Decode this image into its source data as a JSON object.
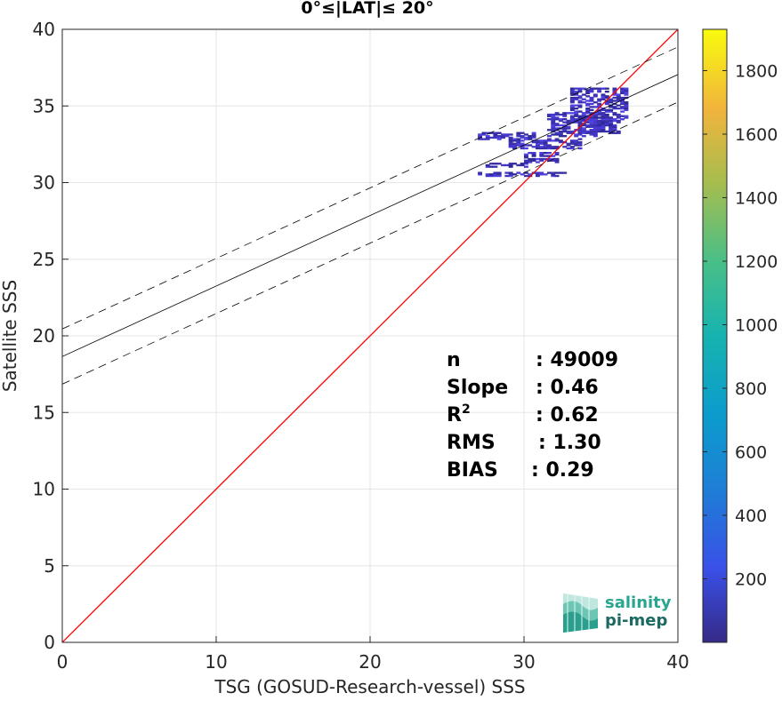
{
  "chart_data": {
    "type": "scatter",
    "title": "0°≤|LAT|≤ 20°",
    "xlabel": "TSG (GOSUD-Research-vessel) SSS",
    "ylabel": "Satellite SSS",
    "xlim": [
      0,
      40
    ],
    "ylim": [
      0,
      40
    ],
    "xticks": [
      "0",
      "10",
      "20",
      "30",
      "40"
    ],
    "yticks": [
      "0",
      "5",
      "10",
      "15",
      "20",
      "25",
      "30",
      "35",
      "40"
    ],
    "grid": true,
    "one_to_one_line": {
      "color": "#ff0000",
      "x": [
        0,
        40
      ],
      "y": [
        0,
        40
      ]
    },
    "fit_line": {
      "color": "#000000",
      "intercept": 18.65,
      "slope": 0.46
    },
    "fit_band_offset": 1.8,
    "density_clusters": [
      {
        "x": [
          27.0,
          30.5
        ],
        "y": [
          32.8,
          33.3
        ]
      },
      {
        "x": [
          29.0,
          33.5
        ],
        "y": [
          32.2,
          32.9
        ]
      },
      {
        "x": [
          31.5,
          35.0
        ],
        "y": [
          33.0,
          34.6
        ]
      },
      {
        "x": [
          33.0,
          36.5
        ],
        "y": [
          34.0,
          36.2
        ]
      },
      {
        "x": [
          33.5,
          36.0
        ],
        "y": [
          33.2,
          34.3
        ]
      },
      {
        "x": [
          27.5,
          30.0
        ],
        "y": [
          31.0,
          31.3
        ]
      },
      {
        "x": [
          27.0,
          32.5
        ],
        "y": [
          30.4,
          30.7
        ]
      },
      {
        "x": [
          30.0,
          32.0
        ],
        "y": [
          31.3,
          32.0
        ]
      }
    ],
    "colorbar": {
      "ticks": [
        "200",
        "400",
        "600",
        "800",
        "1000",
        "1200",
        "1400",
        "1600",
        "1800"
      ],
      "tick_values": [
        200,
        400,
        600,
        800,
        1000,
        1200,
        1400,
        1600,
        1800
      ],
      "range": [
        0,
        1930
      ],
      "colormap": "parula"
    },
    "stats": [
      {
        "label": "n",
        "value": ": 49009"
      },
      {
        "label": "Slope",
        "value": ": 0.46"
      },
      {
        "label": "R",
        "sup": "2",
        "value": ": 0.62"
      },
      {
        "label": "RMS",
        "value": ": 1.30"
      },
      {
        "label": "BIAS",
        "value": ": 0.29"
      }
    ]
  },
  "logo": {
    "line1": "salinity",
    "line2": "pi-mep"
  }
}
